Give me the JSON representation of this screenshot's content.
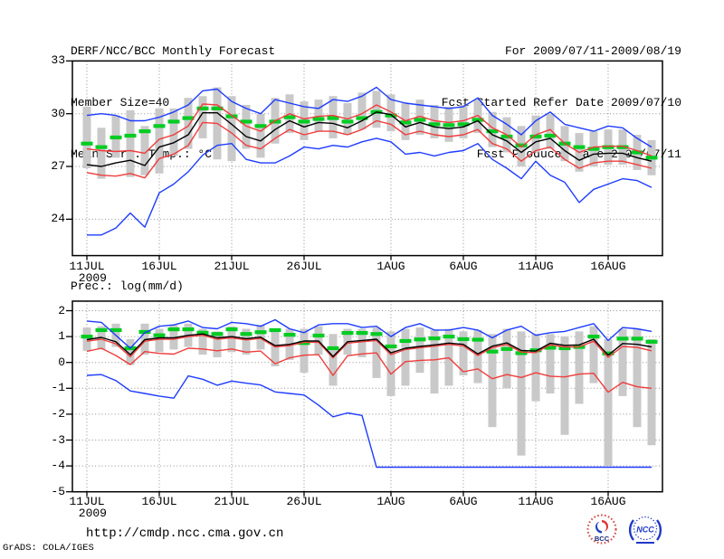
{
  "header": {
    "title": "DERF/NCC/BCC Monthly Forecast",
    "member_size": "Member Size=40",
    "temp_label": "Mean Surf. Temp.: °C",
    "for_range": "For 2009/07/11-2009/08/19",
    "refer_date": "Fcst Started Refer Date 2009/07/10",
    "produced_date": "Fcst Produced Date 2009/07/11"
  },
  "footer": {
    "url": "http://cmdp.ncc.cma.gov.cn",
    "credit": "GrADS: COLA/IGES"
  },
  "logos": {
    "bcc": "BCC",
    "ncc": "NCC"
  },
  "colors": {
    "frame": "#000000",
    "grid": "#8f8f8f",
    "bar": "#c9c9c9",
    "blue": "#1e3cff",
    "red": "#f03c3c",
    "black": "#000000",
    "green": "#00cc22"
  },
  "chart_data": [
    {
      "id": "temp",
      "type": "line",
      "title": "Mean Surf. Temp.: °C",
      "x_year_label": "2009",
      "x_ticks": [
        {
          "day": 0,
          "label": "11JUL"
        },
        {
          "day": 5,
          "label": "16JUL"
        },
        {
          "day": 10,
          "label": "21JUL"
        },
        {
          "day": 15,
          "label": "26JUL"
        },
        {
          "day": 21,
          "label": "1AUG"
        },
        {
          "day": 26,
          "label": "6AUG"
        },
        {
          "day": 31,
          "label": "11AUG"
        },
        {
          "day": 36,
          "label": "16AUG"
        }
      ],
      "ylim": [
        21.93,
        33
      ],
      "yticks": [
        33,
        30,
        27,
        24
      ],
      "grid": "dotted",
      "legend": "none",
      "bars": {
        "name": "ensemble-spread-bar",
        "lo": [
          26.9,
          26.3,
          27.5,
          26.4,
          26.5,
          26.6,
          27.6,
          28.0,
          28.6,
          27.4,
          27.3,
          28.0,
          27.5,
          28.3,
          28.9,
          28.5,
          29.0,
          28.6,
          28.8,
          29.1,
          29.2,
          29.0,
          28.5,
          28.8,
          28.6,
          28.4,
          28.6,
          28.9,
          28.1,
          27.8,
          27.0,
          27.8,
          28.0,
          27.3,
          26.7,
          27.0,
          27.1,
          27.1,
          26.8,
          26.5
        ],
        "hi": [
          30.4,
          29.2,
          29.9,
          30.2,
          29.3,
          30.3,
          30.3,
          30.9,
          31.0,
          31.5,
          31.0,
          30.5,
          30.0,
          30.9,
          31.1,
          30.7,
          30.8,
          31.0,
          30.6,
          31.2,
          31.3,
          31.1,
          30.6,
          30.8,
          30.5,
          30.4,
          30.5,
          30.8,
          30.1,
          29.8,
          29.3,
          29.9,
          30.0,
          29.3,
          28.9,
          29.0,
          29.1,
          29.1,
          28.8,
          28.5
        ]
      },
      "series": [
        {
          "name": "climatology",
          "style": "dashes",
          "color": "#00cc22",
          "values": [
            28.3,
            28.1,
            28.65,
            28.75,
            29.0,
            29.3,
            29.55,
            29.75,
            30.3,
            30.3,
            29.85,
            29.55,
            29.3,
            29.55,
            29.8,
            29.55,
            29.7,
            29.75,
            29.55,
            29.75,
            30.1,
            29.9,
            29.5,
            29.65,
            29.4,
            29.35,
            29.4,
            29.65,
            29.0,
            28.7,
            28.2,
            28.7,
            28.75,
            28.3,
            28.1,
            28.0,
            28.1,
            28.1,
            27.8,
            27.5
          ]
        },
        {
          "name": "plus-sd",
          "style": "line",
          "color": "#f03c3c",
          "values": [
            28.0,
            27.9,
            27.85,
            27.9,
            27.75,
            28.55,
            28.8,
            29.3,
            30.55,
            30.5,
            29.9,
            29.3,
            29.0,
            29.6,
            30.0,
            29.7,
            29.85,
            29.9,
            29.7,
            30.0,
            30.5,
            30.1,
            29.6,
            29.85,
            29.6,
            29.5,
            29.6,
            29.9,
            29.2,
            28.8,
            28.1,
            28.8,
            29.1,
            28.3,
            27.8,
            28.1,
            28.15,
            28.15,
            27.9,
            27.6
          ]
        },
        {
          "name": "minus-sd",
          "style": "line",
          "color": "#f03c3c",
          "values": [
            26.65,
            26.5,
            26.45,
            26.6,
            26.35,
            27.45,
            27.7,
            28.2,
            29.5,
            29.45,
            28.9,
            28.2,
            28.0,
            28.6,
            29.1,
            28.8,
            29.0,
            29.0,
            28.8,
            29.1,
            29.6,
            29.4,
            28.8,
            29.0,
            28.8,
            28.7,
            28.8,
            29.1,
            28.3,
            28.0,
            27.3,
            27.9,
            28.1,
            27.4,
            26.9,
            27.2,
            27.3,
            27.3,
            27.1,
            26.9
          ]
        },
        {
          "name": "ensemble-mean",
          "style": "line",
          "color": "#000000",
          "values": [
            27.1,
            27.0,
            27.2,
            27.35,
            27.05,
            28.1,
            28.35,
            28.8,
            30.05,
            30.05,
            29.4,
            28.7,
            28.45,
            29.1,
            29.6,
            29.25,
            29.5,
            29.45,
            29.2,
            29.6,
            30.1,
            29.95,
            29.25,
            29.5,
            29.25,
            29.15,
            29.25,
            29.6,
            28.8,
            28.45,
            27.8,
            28.4,
            28.6,
            27.9,
            27.35,
            27.7,
            27.75,
            27.75,
            27.5,
            27.3
          ]
        },
        {
          "name": "ensemble-max",
          "style": "line",
          "color": "#1e3cff",
          "values": [
            29.9,
            30.0,
            29.9,
            29.6,
            29.6,
            29.8,
            30.1,
            30.5,
            31.3,
            31.4,
            30.7,
            30.3,
            30.0,
            30.8,
            30.6,
            30.4,
            30.3,
            30.8,
            30.7,
            31.0,
            31.5,
            30.8,
            30.6,
            30.5,
            30.4,
            30.3,
            30.4,
            30.9,
            29.9,
            29.4,
            28.8,
            29.6,
            30.1,
            29.4,
            29.2,
            29.0,
            29.3,
            29.2,
            28.6,
            28.1
          ]
        },
        {
          "name": "ensemble-min",
          "style": "line",
          "color": "#1e3cff",
          "values": [
            23.1,
            23.1,
            23.5,
            24.35,
            23.55,
            25.5,
            26.0,
            26.7,
            27.65,
            28.2,
            28.3,
            27.4,
            27.2,
            27.2,
            27.6,
            28.1,
            28.0,
            28.2,
            28.1,
            28.4,
            28.6,
            28.4,
            27.7,
            27.8,
            27.6,
            27.8,
            27.9,
            28.3,
            27.4,
            26.9,
            26.3,
            27.3,
            26.5,
            26.1,
            24.95,
            25.7,
            26.0,
            26.3,
            26.2,
            25.8
          ]
        }
      ]
    },
    {
      "id": "prec",
      "type": "line",
      "title": "Prec.: log(mm/d)",
      "x_year_label": "2009",
      "x_ticks": [
        {
          "day": 0,
          "label": "11JUL"
        },
        {
          "day": 5,
          "label": "16JUL"
        },
        {
          "day": 10,
          "label": "21JUL"
        },
        {
          "day": 15,
          "label": "26JUL"
        },
        {
          "day": 21,
          "label": "1AUG"
        },
        {
          "day": 26,
          "label": "6AUG"
        },
        {
          "day": 31,
          "label": "11AUG"
        },
        {
          "day": 36,
          "label": "16AUG"
        }
      ],
      "ylim": [
        -5,
        2.37
      ],
      "yticks": [
        2,
        1,
        0,
        -1,
        -2,
        -3,
        -4,
        -5
      ],
      "grid": "dotted",
      "legend": "none",
      "bars": {
        "name": "ensemble-spread-bar",
        "lo": [
          0.45,
          0.5,
          0.6,
          -0.1,
          0.3,
          0.4,
          0.5,
          0.6,
          0.3,
          0.2,
          0.4,
          0.3,
          0.5,
          -0.15,
          0.1,
          -0.4,
          0.3,
          -0.9,
          0.3,
          0.2,
          -0.6,
          -1.3,
          -0.9,
          -0.4,
          -1.2,
          -0.9,
          -0.5,
          -0.8,
          -2.5,
          -1.0,
          -3.6,
          -1.5,
          -1.2,
          -2.8,
          -1.6,
          -0.8,
          -4.0,
          -1.3,
          -2.5,
          -3.2
        ],
        "hi": [
          1.35,
          1.4,
          1.5,
          0.9,
          1.5,
          1.3,
          1.45,
          1.5,
          1.3,
          1.2,
          1.4,
          1.3,
          1.45,
          1.3,
          1.3,
          1.3,
          1.4,
          1.1,
          1.3,
          1.3,
          1.35,
          1.2,
          1.3,
          1.35,
          1.25,
          1.3,
          1.2,
          1.25,
          1.1,
          1.3,
          1.2,
          1.1,
          1.1,
          1.0,
          1.2,
          1.4,
          0.9,
          1.3,
          1.3,
          0.9
        ]
      },
      "series": [
        {
          "name": "climatology",
          "style": "dashes",
          "color": "#00cc22",
          "values": [
            1.0,
            1.25,
            1.25,
            0.55,
            1.18,
            1.05,
            1.28,
            1.28,
            1.15,
            1.1,
            1.28,
            1.1,
            1.17,
            1.25,
            1.07,
            0.75,
            1.04,
            0.55,
            1.14,
            1.14,
            1.1,
            0.62,
            0.83,
            0.89,
            0.93,
            1.0,
            0.9,
            0.88,
            0.42,
            0.52,
            0.36,
            0.47,
            0.57,
            0.55,
            0.6,
            1.0,
            0.35,
            0.92,
            0.92,
            0.8
          ]
        },
        {
          "name": "plus-sd",
          "style": "line",
          "color": "#f03c3c",
          "values": [
            0.82,
            0.9,
            0.72,
            0.22,
            0.82,
            0.9,
            0.9,
            1.0,
            1.05,
            0.9,
            0.95,
            0.87,
            0.93,
            0.6,
            0.65,
            0.78,
            0.78,
            0.18,
            0.75,
            0.8,
            0.85,
            0.3,
            0.5,
            0.57,
            0.63,
            0.7,
            0.64,
            0.27,
            0.57,
            0.7,
            0.4,
            0.38,
            0.68,
            0.6,
            0.6,
            0.82,
            0.2,
            0.62,
            0.58,
            0.45
          ]
        },
        {
          "name": "minus-sd",
          "style": "line",
          "color": "#f03c3c",
          "values": [
            0.43,
            0.55,
            0.27,
            -0.08,
            0.42,
            0.35,
            0.32,
            0.55,
            0.52,
            0.45,
            0.52,
            0.4,
            0.44,
            -0.05,
            0.18,
            0.28,
            0.3,
            -0.5,
            0.26,
            0.33,
            0.37,
            -0.45,
            0.03,
            0.08,
            0.1,
            0.18,
            -0.36,
            -0.25,
            -0.63,
            -0.47,
            -0.58,
            -0.4,
            -0.53,
            -0.56,
            -0.45,
            -0.42,
            -1.15,
            -0.77,
            -0.94,
            -1.0
          ]
        },
        {
          "name": "ensemble-mean",
          "style": "line",
          "color": "#000000",
          "values": [
            0.88,
            0.97,
            0.8,
            0.3,
            0.88,
            0.95,
            0.95,
            1.05,
            1.1,
            0.95,
            1.0,
            0.92,
            0.98,
            0.65,
            0.7,
            0.83,
            0.83,
            0.23,
            0.8,
            0.85,
            0.9,
            0.37,
            0.55,
            0.62,
            0.68,
            0.75,
            0.7,
            0.33,
            0.63,
            0.76,
            0.46,
            0.44,
            0.74,
            0.66,
            0.68,
            0.9,
            0.28,
            0.73,
            0.7,
            0.6
          ]
        },
        {
          "name": "ensemble-max",
          "style": "line",
          "color": "#1e3cff",
          "values": [
            1.6,
            1.55,
            1.05,
            0.55,
            1.15,
            1.4,
            1.45,
            1.6,
            1.35,
            1.3,
            1.55,
            1.5,
            1.4,
            1.65,
            1.3,
            1.15,
            1.45,
            1.5,
            1.5,
            1.35,
            1.4,
            1.0,
            1.35,
            1.5,
            1.25,
            1.25,
            1.35,
            1.25,
            0.95,
            1.25,
            1.4,
            1.05,
            1.15,
            1.2,
            1.35,
            1.5,
            0.85,
            1.35,
            1.3,
            1.2
          ]
        },
        {
          "name": "ensemble-min",
          "style": "line",
          "color": "#1e3cff",
          "values": [
            -0.5,
            -0.47,
            -0.7,
            -1.1,
            -1.2,
            -1.3,
            -1.38,
            -0.52,
            -0.65,
            -0.88,
            -0.72,
            -0.8,
            -0.87,
            -1.14,
            -1.2,
            -1.26,
            -1.65,
            -2.1,
            -1.95,
            -2.05,
            -4.05,
            -4.05,
            -4.05,
            -4.05,
            -4.05,
            -4.05,
            -4.05,
            -4.05,
            -4.05,
            -4.05,
            -4.05,
            -4.05,
            -4.05,
            -4.05,
            -4.05,
            -4.05,
            -4.05,
            -4.05,
            -4.05,
            -4.05
          ]
        }
      ]
    }
  ]
}
